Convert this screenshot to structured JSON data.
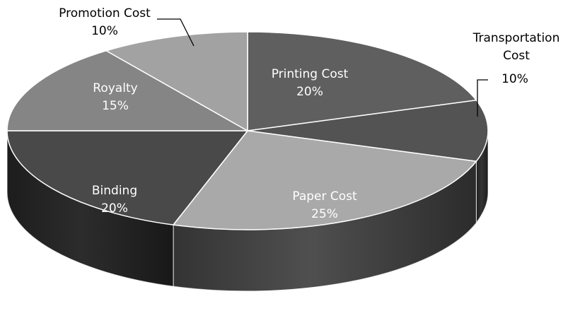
{
  "chart_data": {
    "type": "pie",
    "style": "3d",
    "title": "",
    "legend": "none",
    "slices": [
      {
        "label": "Printing Cost",
        "value": 20,
        "display": "20%",
        "color": "#5f5f5f",
        "side_color": "#3c3c3c",
        "label_placement": "inside",
        "label_color": "#ffffff"
      },
      {
        "label": "Transportation Cost",
        "value": 10,
        "display": "10%",
        "color": "#535353",
        "side_color": "#333333",
        "label_placement": "outside",
        "label_color": "#000000"
      },
      {
        "label": "Paper Cost",
        "value": 25,
        "display": "25%",
        "color": "#a9a9a9",
        "side_color": "#4f4f4f",
        "label_placement": "inside",
        "label_color": "#ffffff"
      },
      {
        "label": "Binding",
        "value": 20,
        "display": "20%",
        "color": "#494949",
        "side_color": "#2c2c2c",
        "label_placement": "inside",
        "label_color": "#ffffff"
      },
      {
        "label": "Royalty",
        "value": 15,
        "display": "15%",
        "color": "#858585",
        "side_color": "#4a4a4a",
        "label_placement": "inside",
        "label_color": "#ffffff"
      },
      {
        "label": "Promotion Cost",
        "value": 10,
        "display": "10%",
        "color": "#a2a2a2",
        "side_color": "#555555",
        "label_placement": "outside",
        "label_color": "#000000"
      }
    ]
  }
}
